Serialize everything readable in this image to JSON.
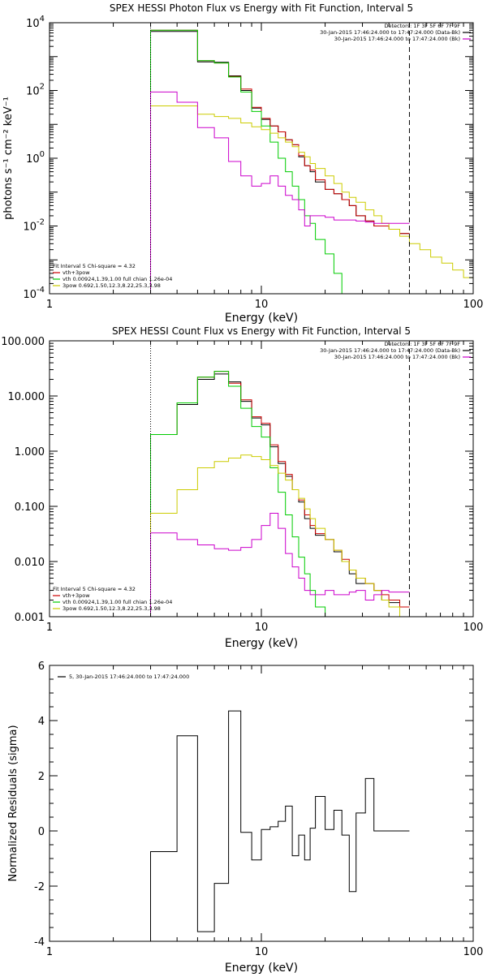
{
  "chart_data": [
    {
      "type": "line",
      "title": "SPEX HESSI Photon Flux vs Energy with Fit Function, Interval 5",
      "xlabel": "Energy (keV)",
      "ylabel": "photons s⁻¹ cm⁻² keV⁻¹",
      "xscale": "log",
      "yscale": "log",
      "xlim": [
        1,
        100
      ],
      "ylim": [
        0.0001,
        10000
      ],
      "xticks": [
        {
          "v": 1,
          "label": "1"
        },
        {
          "v": 10,
          "label": "10"
        },
        {
          "v": 100,
          "label": "100"
        }
      ],
      "yticks": [
        {
          "v": 0.0001,
          "base": "10",
          "exp": "-4"
        },
        {
          "v": 0.01,
          "base": "10",
          "exp": "-2"
        },
        {
          "v": 1,
          "base": "10",
          "exp": "0"
        },
        {
          "v": 100,
          "base": "10",
          "exp": "2"
        },
        {
          "v": 10000,
          "base": "10",
          "exp": "4"
        }
      ],
      "legend_top_right": [
        {
          "text": "Detectors: 1F 3F 5F 6F 7F 9F"
        },
        {
          "text": "30-Jan-2015 17:46:24.000 to 17:47:24.000 (Data-Bk)",
          "color": "#000000"
        },
        {
          "text": "30-Jan-2015 17:46:24.000 to 17:47:24.000 (Bk)",
          "color": "#cc00cc"
        }
      ],
      "legend_bottom_left": [
        {
          "text": "Fit Interval 5   Chi-square = 4.32"
        },
        {
          "text": "vth+3pow",
          "color": "#cc0000"
        },
        {
          "text": "vth 0.00924,1.39,1.00  full chian 1.26e-04",
          "color": "#00cc00"
        },
        {
          "text": "3pow 0.692,1.50,12.3,8.22,25.3,3.98",
          "color": "#cccc00"
        }
      ],
      "vlines": [
        {
          "x": 3.0,
          "style": "dotted",
          "color": "#000000"
        },
        {
          "x": 50.0,
          "style": "dashed",
          "color": "#000000"
        }
      ],
      "series": [
        {
          "color": "#000000",
          "edges": [
            3,
            4,
            5,
            6,
            7,
            8,
            9,
            10,
            11,
            12,
            13,
            14,
            15,
            16,
            17,
            18,
            20,
            22,
            24,
            26,
            28,
            31,
            34,
            37,
            40,
            45,
            50
          ],
          "values": [
            5500,
            5500,
            700,
            680,
            270,
            100,
            30,
            14,
            9,
            6,
            3.5,
            2.5,
            1.1,
            0.6,
            0.4,
            0.2,
            0.12,
            0.09,
            0.06,
            0.04,
            0.02,
            0.014,
            0.01,
            0.01,
            0.008,
            0.006
          ]
        },
        {
          "color": "#cc0000",
          "edges": [
            3,
            4,
            5,
            6,
            7,
            8,
            9,
            10,
            11,
            12,
            13,
            14,
            15,
            16,
            17,
            18,
            20,
            22,
            24,
            26,
            28,
            31,
            34,
            37,
            40,
            45,
            50
          ],
          "values": [
            6000,
            6000,
            760,
            650,
            260,
            110,
            32,
            15,
            9,
            6,
            3.5,
            2.5,
            1.2,
            0.6,
            0.45,
            0.23,
            0.12,
            0.09,
            0.06,
            0.04,
            0.02,
            0.014,
            0.01,
            0.01,
            0.008,
            0.006
          ]
        },
        {
          "color": "#00cc00",
          "edges": [
            3,
            4,
            5,
            6,
            7,
            8,
            9,
            10,
            11,
            12,
            13,
            14,
            15,
            16,
            17,
            18,
            20,
            22,
            24,
            26
          ],
          "values": [
            6000,
            6000,
            760,
            650,
            250,
            90,
            24,
            9,
            3,
            1,
            0.4,
            0.15,
            0.06,
            0.02,
            0.012,
            0.004,
            0.0015,
            0.0004,
            0.0001
          ]
        },
        {
          "color": "#cccc00",
          "edges": [
            3,
            4,
            5,
            6,
            7,
            8,
            9,
            10,
            11,
            12,
            13,
            14,
            15,
            16,
            17,
            18,
            20,
            22,
            24,
            26,
            28,
            31,
            34,
            37,
            40,
            45,
            50,
            56,
            63,
            71,
            80,
            90,
            100
          ],
          "values": [
            35,
            35,
            20,
            17,
            15,
            11,
            8.5,
            7,
            5.5,
            4,
            3,
            2.2,
            1.5,
            1.1,
            0.7,
            0.5,
            0.3,
            0.18,
            0.1,
            0.07,
            0.05,
            0.03,
            0.02,
            0.012,
            0.008,
            0.005,
            0.003,
            0.002,
            0.0012,
            0.0008,
            0.0005,
            0.0003
          ]
        },
        {
          "color": "#cc00cc",
          "edges": [
            3,
            4,
            5,
            6,
            7,
            8,
            9,
            10,
            11,
            12,
            13,
            14,
            15,
            16,
            17,
            18,
            20,
            22,
            24,
            26,
            28,
            31,
            34,
            37,
            40,
            45,
            50
          ],
          "values": [
            90,
            45,
            8,
            4,
            0.8,
            0.3,
            0.15,
            0.18,
            0.3,
            0.15,
            0.08,
            0.06,
            0.03,
            0.01,
            0.02,
            0.02,
            0.018,
            0.015,
            0.015,
            0.015,
            0.014,
            0.013,
            0.012,
            0.012,
            0.012,
            0.012
          ]
        }
      ]
    },
    {
      "type": "line",
      "title": "SPEX HESSI Count Flux vs Energy with Fit Function, Interval 5",
      "xlabel": "Energy (keV)",
      "ylabel": "",
      "xscale": "log",
      "yscale": "log",
      "xlim": [
        1,
        100
      ],
      "ylim": [
        0.001,
        100
      ],
      "xticks": [
        {
          "v": 1,
          "label": "1"
        },
        {
          "v": 10,
          "label": "10"
        },
        {
          "v": 100,
          "label": "100"
        }
      ],
      "yticks": [
        {
          "v": 0.001,
          "label": "0.001"
        },
        {
          "v": 0.01,
          "label": "0.010"
        },
        {
          "v": 0.1,
          "label": "0.100"
        },
        {
          "v": 1,
          "label": "1.000"
        },
        {
          "v": 10,
          "label": "10.000"
        },
        {
          "v": 100,
          "label": "100.000"
        }
      ],
      "legend_top_right": [
        {
          "text": "Detectors: 1F 3F 5F 6F 7F 9F"
        },
        {
          "text": "30-Jan-2015 17:46:24.000 to 17:47:24.000 (Data-Bk)",
          "color": "#000000"
        },
        {
          "text": "30-Jan-2015 17:46:24.000 to 17:47:24.000 (Bk)",
          "color": "#cc00cc"
        }
      ],
      "legend_bottom_left": [
        {
          "text": "Fit Interval 5   Chi-square = 4.32"
        },
        {
          "text": "vth+3pow",
          "color": "#cc0000"
        },
        {
          "text": "vth 0.00924,1.39,1.00  full chian 1.26e-04",
          "color": "#00cc00"
        },
        {
          "text": "3pow 0.692,1.50,12.3,8.22,25.3,3.98",
          "color": "#cccc00"
        }
      ],
      "vlines": [
        {
          "x": 3.0,
          "style": "dotted",
          "color": "#000000"
        },
        {
          "x": 50.0,
          "style": "dashed",
          "color": "#000000"
        }
      ],
      "series": [
        {
          "color": "#000000",
          "edges": [
            3,
            4,
            5,
            6,
            7,
            8,
            9,
            10,
            11,
            12,
            13,
            14,
            15,
            16,
            17,
            18,
            20,
            22,
            24,
            26,
            28,
            31,
            34,
            37,
            40,
            45,
            50
          ],
          "values": [
            2.0,
            7.0,
            20,
            25,
            18,
            8,
            4,
            3,
            1.2,
            0.6,
            0.35,
            0.2,
            0.12,
            0.06,
            0.04,
            0.03,
            0.025,
            0.015,
            0.01,
            0.006,
            0.004,
            0.004,
            0.003,
            0.002,
            0.0018,
            0.0015
          ]
        },
        {
          "color": "#cc0000",
          "edges": [
            3,
            4,
            5,
            6,
            7,
            8,
            9,
            10,
            11,
            12,
            13,
            14,
            15,
            16,
            17,
            18,
            20,
            22,
            24,
            26,
            28,
            31,
            34,
            37,
            40,
            45,
            50
          ],
          "values": [
            2.0,
            7.5,
            22,
            28,
            17,
            8.5,
            4.2,
            3.2,
            1.3,
            0.65,
            0.38,
            0.2,
            0.13,
            0.07,
            0.045,
            0.032,
            0.025,
            0.016,
            0.011,
            0.007,
            0.005,
            0.004,
            0.003,
            0.0025,
            0.002,
            0.0015
          ]
        },
        {
          "color": "#00cc00",
          "edges": [
            3,
            4,
            5,
            6,
            7,
            8,
            9,
            10,
            11,
            12,
            13,
            14,
            15,
            16,
            17,
            18,
            20,
            22
          ],
          "values": [
            2.0,
            7.5,
            22,
            28,
            15,
            6,
            2.8,
            1.8,
            0.5,
            0.18,
            0.07,
            0.028,
            0.012,
            0.006,
            0.003,
            0.0015,
            0.001
          ]
        },
        {
          "color": "#cccc00",
          "edges": [
            3,
            4,
            5,
            6,
            7,
            8,
            9,
            10,
            11,
            12,
            13,
            14,
            15,
            16,
            17,
            18,
            20,
            22,
            24,
            26,
            28,
            31,
            34,
            37,
            40,
            45,
            50
          ],
          "values": [
            0.075,
            0.2,
            0.5,
            0.65,
            0.75,
            0.85,
            0.8,
            0.7,
            0.55,
            0.4,
            0.3,
            0.2,
            0.14,
            0.09,
            0.06,
            0.04,
            0.025,
            0.016,
            0.01,
            0.007,
            0.005,
            0.004,
            0.003,
            0.002,
            0.0015,
            0.001
          ]
        },
        {
          "color": "#cc00cc",
          "edges": [
            3,
            4,
            5,
            6,
            7,
            8,
            9,
            10,
            11,
            12,
            13,
            14,
            15,
            16,
            17,
            18,
            20,
            22,
            24,
            26,
            28,
            31,
            34,
            37,
            40,
            45,
            50
          ],
          "values": [
            0.033,
            0.025,
            0.02,
            0.017,
            0.016,
            0.018,
            0.025,
            0.045,
            0.075,
            0.04,
            0.014,
            0.008,
            0.005,
            0.003,
            0.0025,
            0.0025,
            0.003,
            0.0025,
            0.0025,
            0.0028,
            0.003,
            0.002,
            0.0025,
            0.003,
            0.0028,
            0.0028
          ]
        }
      ]
    },
    {
      "type": "line",
      "title": "",
      "xlabel": "Energy (keV)",
      "ylabel": "Normalized Residuals (sigma)",
      "xscale": "log",
      "yscale": "linear",
      "xlim": [
        1,
        100
      ],
      "ylim": [
        -4,
        6
      ],
      "xticks": [
        {
          "v": 1,
          "label": "1"
        },
        {
          "v": 10,
          "label": "10"
        },
        {
          "v": 100,
          "label": "100"
        }
      ],
      "yticks": [
        {
          "v": -4,
          "label": "-4"
        },
        {
          "v": -2,
          "label": "-2"
        },
        {
          "v": 0,
          "label": "0"
        },
        {
          "v": 2,
          "label": "2"
        },
        {
          "v": 4,
          "label": "4"
        },
        {
          "v": 6,
          "label": "6"
        }
      ],
      "legend_top_left": [
        {
          "text": "5, 30-Jan-2015 17:46:24.000 to 17:47:24.000",
          "color": "#000000"
        }
      ],
      "vlines": [],
      "series": [
        {
          "color": "#000000",
          "edges": [
            3,
            4,
            5,
            6,
            7,
            8,
            9,
            10,
            11,
            12,
            13,
            14,
            15,
            16,
            17,
            18,
            20,
            22,
            24,
            26,
            28,
            31,
            34,
            37,
            40,
            45,
            50
          ],
          "values": [
            -0.75,
            3.45,
            -3.65,
            -1.9,
            4.35,
            -0.05,
            -1.05,
            0.05,
            0.15,
            0.35,
            0.9,
            -0.9,
            -0.15,
            -1.05,
            0.1,
            1.25,
            0.05,
            0.75,
            -0.15,
            -2.2,
            0.65,
            1.9,
            0,
            0,
            0,
            0
          ]
        }
      ]
    }
  ]
}
